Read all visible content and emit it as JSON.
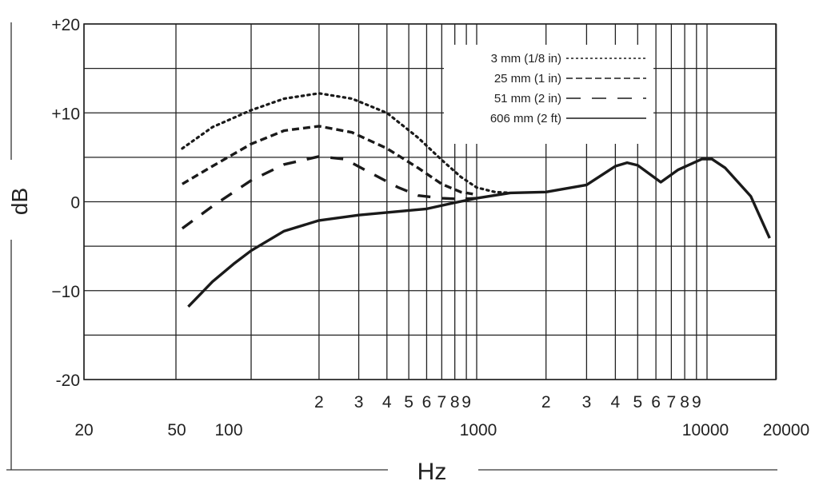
{
  "chart_data": {
    "type": "line",
    "xlabel": "Hz",
    "ylabel": "dB",
    "xscale": "log",
    "xlim": [
      20,
      20000
    ],
    "ylim": [
      -20,
      20
    ],
    "grid": true,
    "legend_placement": "top-right",
    "y_ticks": [
      {
        "value": 20,
        "label": "+20"
      },
      {
        "value": 10,
        "label": "+10"
      },
      {
        "value": 0,
        "label": "0"
      },
      {
        "value": -10,
        "label": "−10"
      },
      {
        "value": -20,
        "label": "-20"
      }
    ],
    "y_grid_step": 5,
    "x_grid": [
      20,
      50,
      100,
      200,
      300,
      400,
      500,
      600,
      700,
      800,
      900,
      1000,
      2000,
      3000,
      4000,
      5000,
      6000,
      7000,
      8000,
      9000,
      10000,
      20000
    ],
    "x_minor_labels": [
      {
        "value": 200,
        "label": "2"
      },
      {
        "value": 300,
        "label": "3"
      },
      {
        "value": 400,
        "label": "4"
      },
      {
        "value": 500,
        "label": "5"
      },
      {
        "value": 600,
        "label": "6"
      },
      {
        "value": 700,
        "label": "7"
      },
      {
        "value": 800,
        "label": "8"
      },
      {
        "value": 900,
        "label": "9"
      },
      {
        "value": 2000,
        "label": "2"
      },
      {
        "value": 3000,
        "label": "3"
      },
      {
        "value": 4000,
        "label": "4"
      },
      {
        "value": 5000,
        "label": "5"
      },
      {
        "value": 6000,
        "label": "6"
      },
      {
        "value": 7000,
        "label": "7"
      },
      {
        "value": 8000,
        "label": "8"
      },
      {
        "value": 9000,
        "label": "9"
      }
    ],
    "x_major_labels": [
      {
        "value": 20,
        "label": "20"
      },
      {
        "value": 50,
        "label": "50"
      },
      {
        "value": 100,
        "label": "100"
      },
      {
        "value": 1000,
        "label": "1000"
      },
      {
        "value": 10000,
        "label": "10000"
      },
      {
        "value": 20000,
        "label": "20000"
      }
    ],
    "series": [
      {
        "name": "3 mm (1/8 in)",
        "style": "dotted",
        "x": [
          53,
          70,
          100,
          140,
          200,
          280,
          400,
          550,
          700,
          850,
          1000,
          1200,
          1400
        ],
        "y": [
          6,
          8.4,
          10.3,
          11.6,
          12.2,
          11.6,
          10,
          7.2,
          4.7,
          2.8,
          1.6,
          1.1,
          1
        ]
      },
      {
        "name": "25 mm (1 in)",
        "style": "dashed",
        "x": [
          53,
          70,
          100,
          140,
          200,
          280,
          400,
          550,
          700,
          850,
          1000
        ],
        "y": [
          2,
          4,
          6.5,
          8,
          8.5,
          7.8,
          6,
          3.8,
          2,
          1.1,
          0.8
        ]
      },
      {
        "name": "51 mm (2 in)",
        "style": "long-dashed",
        "x": [
          53,
          70,
          100,
          140,
          200,
          260,
          330,
          450,
          550,
          700,
          850,
          1000
        ],
        "y": [
          -3,
          -0.5,
          2.4,
          4.2,
          5.1,
          4.8,
          3.4,
          1.6,
          0.7,
          0.4,
          0.3,
          0.4
        ]
      },
      {
        "name": "606 mm (2 ft)",
        "style": "solid",
        "x": [
          56,
          70,
          85,
          100,
          140,
          200,
          300,
          400,
          600,
          800,
          1000,
          1400,
          2000,
          3000,
          4000,
          4500,
          5000,
          6300,
          7500,
          9500,
          10500,
          12000,
          15500,
          18700
        ],
        "y": [
          -11.8,
          -9,
          -7,
          -5.5,
          -3.3,
          -2.1,
          -1.5,
          -1.2,
          -0.8,
          -0.1,
          0.4,
          1,
          1.1,
          1.9,
          4,
          4.4,
          4.1,
          2.2,
          3.6,
          4.8,
          4.8,
          3.8,
          0.6,
          -4.1
        ]
      }
    ]
  }
}
